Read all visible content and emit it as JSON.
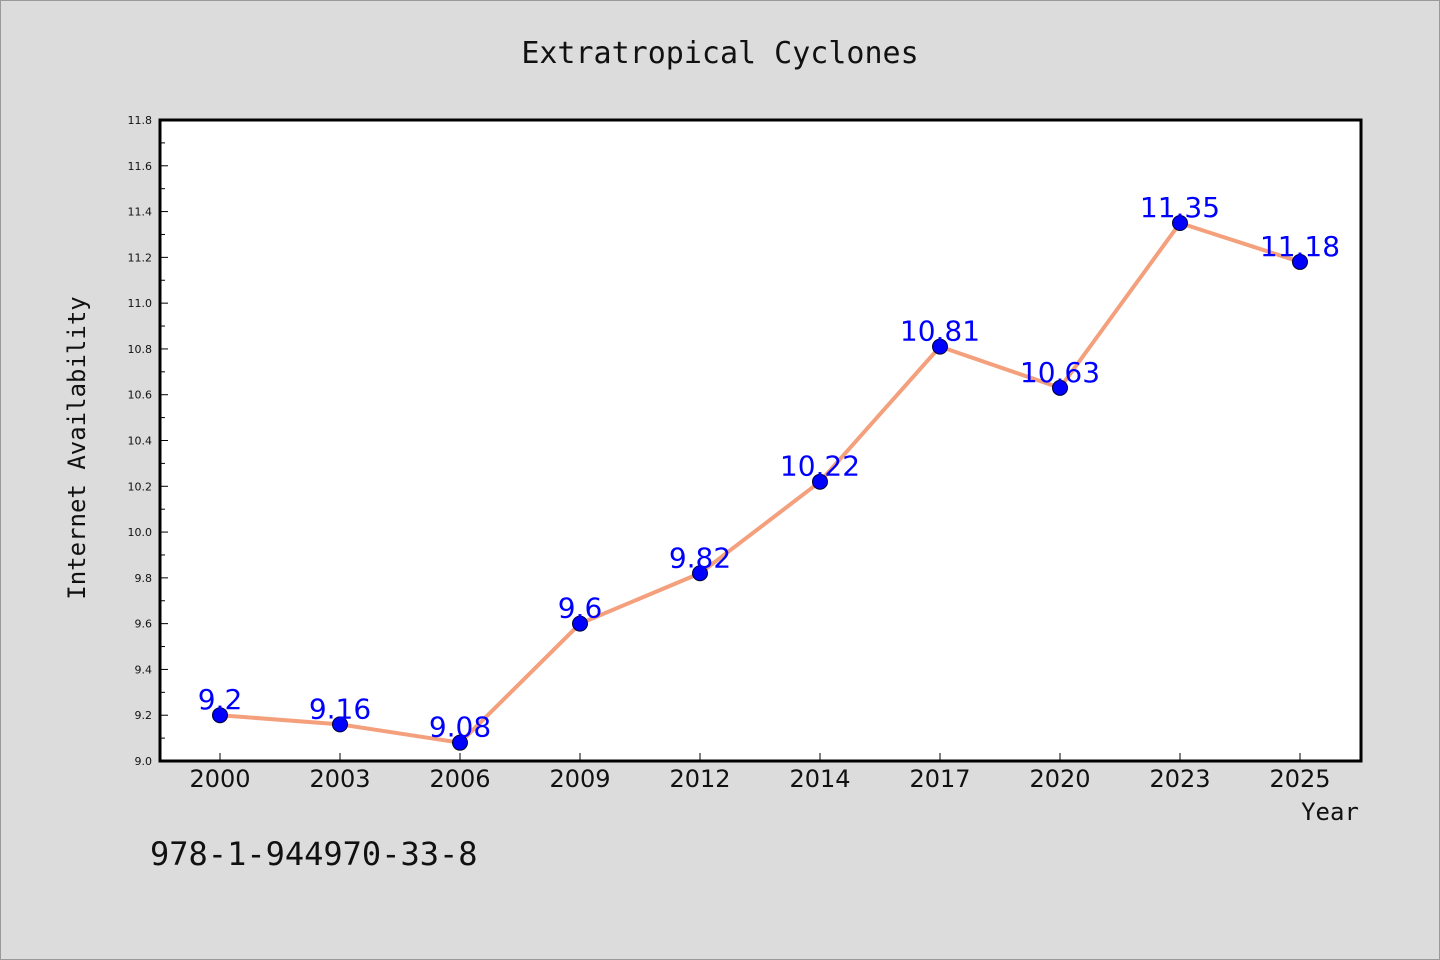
{
  "chart_data": {
    "type": "line",
    "title": "Extratropical Cyclones",
    "xlabel": "Year",
    "ylabel": "Internet Availability",
    "categories": [
      "2000",
      "2003",
      "2006",
      "2009",
      "2012",
      "2014",
      "2017",
      "2020",
      "2023",
      "2025"
    ],
    "series": [
      {
        "values": [
          9.2,
          9.16,
          9.08,
          9.6,
          9.82,
          10.22,
          10.81,
          10.63,
          11.35,
          11.18
        ]
      }
    ],
    "data_labels": [
      "9.2",
      "9.16",
      "9.08",
      "9.6",
      "9.82",
      "10.22",
      "10.81",
      "10.63",
      "11.35",
      "11.18"
    ],
    "ylim": [
      9.0,
      11.8
    ],
    "yticks": [
      "9.0",
      "9.2",
      "9.4",
      "9.6",
      "9.8",
      "10.0",
      "10.2",
      "10.4",
      "10.6",
      "10.8",
      "11.0",
      "11.2",
      "11.4",
      "11.6",
      "11.8"
    ],
    "grid": false,
    "colors": {
      "line": "#f4a07c",
      "marker": "#0000ff",
      "data_label": "#0000ff",
      "plot_bg": "#ffffff",
      "page_bg": "#dcdcdc"
    }
  },
  "footnote": "978-1-944970-33-8"
}
